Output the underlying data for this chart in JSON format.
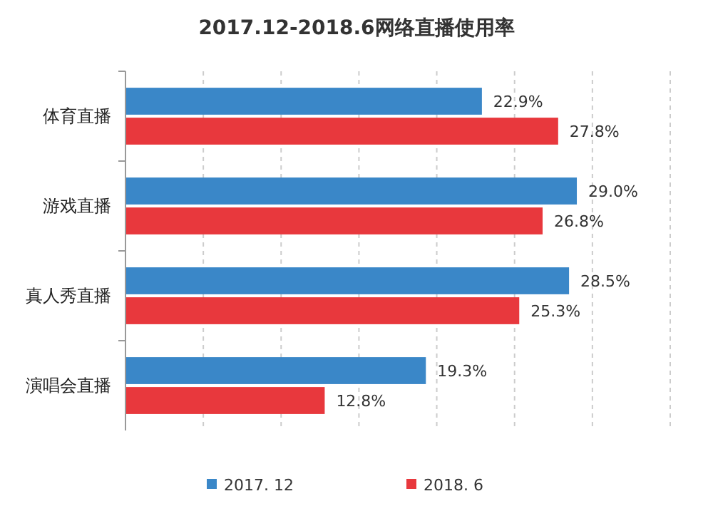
{
  "chart_data": {
    "type": "bar",
    "orientation": "horizontal",
    "title": "2017.12-2018.6网络直播使用率",
    "categories": [
      "体育直播",
      "游戏直播",
      "真人秀直播",
      "演唱会直播"
    ],
    "series": [
      {
        "name": "2017. 12",
        "color": "#3a87c8",
        "values": [
          22.9,
          29.0,
          28.5,
          19.3
        ],
        "value_labels": [
          "22.9%",
          "29.0%",
          "28.5%",
          "19.3%"
        ]
      },
      {
        "name": "2018. 6",
        "color": "#e8383d",
        "values": [
          27.8,
          26.8,
          25.3,
          12.8
        ],
        "value_labels": [
          "27.8%",
          "26.8%",
          "25.3%",
          "12.8%"
        ]
      }
    ],
    "xlim": [
      0,
      35
    ],
    "xticks": [
      {
        "value": 5,
        "label": null
      },
      {
        "value": 10,
        "label": null
      },
      {
        "value": 15,
        "label": null
      },
      {
        "value": 20,
        "label": null
      },
      {
        "value": 25,
        "label": null
      },
      {
        "value": 30,
        "label": null
      },
      {
        "value": 35,
        "label": null
      }
    ],
    "grid": "x",
    "legend": "bottom"
  }
}
